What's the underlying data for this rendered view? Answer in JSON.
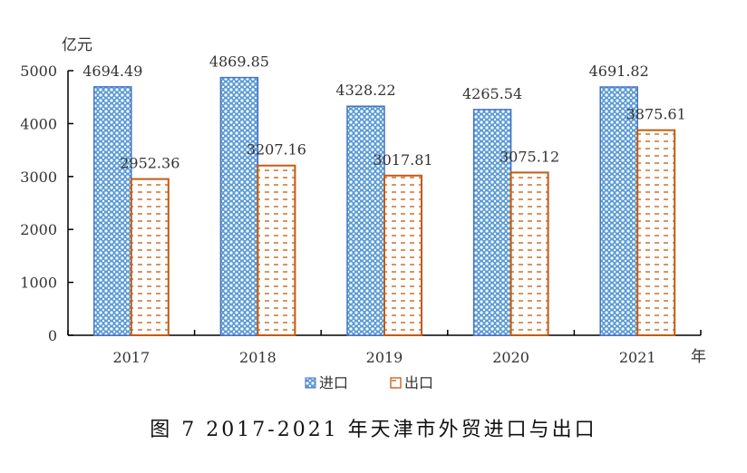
{
  "chart_data": {
    "type": "bar",
    "ylabel": "亿元",
    "xlabel": "年",
    "categories": [
      "2017",
      "2018",
      "2019",
      "2020",
      "2021"
    ],
    "ylim": [
      0,
      5000
    ],
    "yticks": [
      0,
      1000,
      2000,
      3000,
      4000,
      5000
    ],
    "grid": false,
    "legend_position": "bottom",
    "series": [
      {
        "name": "进口",
        "values": [
          4694.49,
          4869.85,
          4328.22,
          4265.54,
          4691.82
        ],
        "labels": [
          "4694.49",
          "4869.85",
          "4328.22",
          "4265.54",
          "4691.82"
        ],
        "color": "#4472C4",
        "pattern": "crosshatch-dots"
      },
      {
        "name": "出口",
        "values": [
          2952.36,
          3207.16,
          3017.81,
          3075.12,
          3875.61
        ],
        "labels": [
          "2952.36",
          "3207.16",
          "3017.81",
          "3075.12",
          "3875.61"
        ],
        "color": "#C55A11",
        "pattern": "dashes"
      }
    ]
  },
  "caption": "图 7   2017-2021 年天津市外贸进口与出口"
}
